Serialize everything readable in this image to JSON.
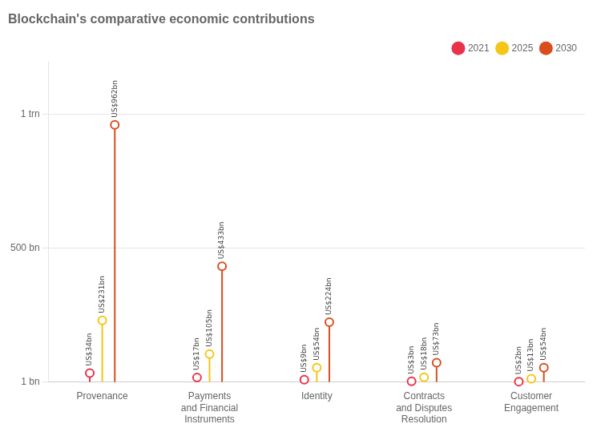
{
  "chart_data": {
    "type": "lollipop",
    "title": "Blockchain's comparative economic contributions",
    "categories": [
      "Provenance",
      "Payments\nand Financial\nInstruments",
      "Identity",
      "Contracts\nand Disputes\nResolution",
      "Customer\nEngagement"
    ],
    "series": [
      {
        "name": "2021",
        "color": "#e8334a",
        "values": [
          34,
          17,
          9,
          3,
          2
        ],
        "value_labels": [
          "US$34bn",
          "US$17bn",
          "US$9bn",
          "US$3bn",
          "US$2bn"
        ]
      },
      {
        "name": "2025",
        "color": "#f5c518",
        "values": [
          231,
          105,
          54,
          18,
          13
        ],
        "value_labels": [
          "US$231bn",
          "US$105bn",
          "US$54bn",
          "US$18bn",
          "US$13bn"
        ]
      },
      {
        "name": "2030",
        "color": "#d94e1f",
        "values": [
          962,
          433,
          224,
          73,
          54
        ],
        "value_labels": [
          "US$962bn",
          "US$433bn",
          "US$224bn",
          "US$73bn",
          "US$54bn"
        ]
      }
    ],
    "ylim": [
      0,
      1200
    ],
    "yticks": [
      {
        "value": 1,
        "label": "1 bn"
      },
      {
        "value": 500,
        "label": "500 bn"
      },
      {
        "value": 1000,
        "label": "1 trn"
      }
    ],
    "grid": true,
    "legend": "upper right",
    "data_labels": true,
    "marker": "circle"
  }
}
